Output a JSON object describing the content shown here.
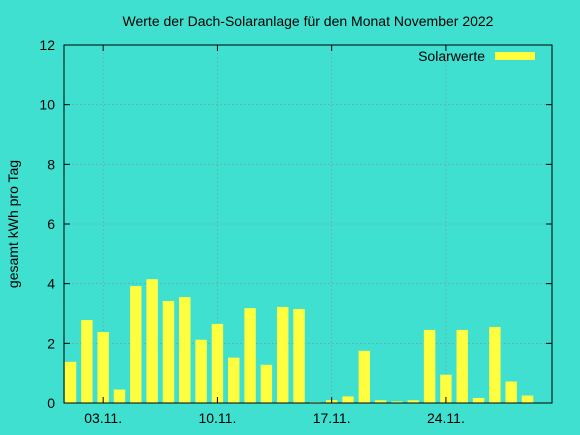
{
  "chart_data": {
    "type": "bar",
    "title": "Werte der Dach-Solaranlage für den Monat November 2022",
    "ylabel": "gesamt kWh pro Tag",
    "xlabel": "",
    "ylim": [
      0,
      12
    ],
    "yticks": [
      "0",
      "2",
      "4",
      "6",
      "8",
      "10",
      "12"
    ],
    "x_ticks": [
      {
        "day": 3,
        "label": "03.11."
      },
      {
        "day": 10,
        "label": "10.11."
      },
      {
        "day": 17,
        "label": "17.11."
      },
      {
        "day": 24,
        "label": "24.11."
      }
    ],
    "x_range_days": [
      0.6,
      30.5
    ],
    "grid": true,
    "legend_position": "top-right",
    "bar_color": "#ffff40",
    "background_color": "#40e0d0",
    "series": [
      {
        "name": "Solarwerte",
        "days": [
          1,
          2,
          3,
          4,
          5,
          6,
          7,
          8,
          9,
          10,
          11,
          12,
          13,
          14,
          15,
          16,
          17,
          18,
          19,
          20,
          21,
          22,
          23,
          24,
          25,
          26,
          27,
          28,
          29,
          30
        ],
        "values": [
          1.38,
          2.78,
          2.38,
          0.45,
          3.92,
          4.15,
          3.42,
          3.55,
          2.12,
          2.65,
          1.52,
          3.18,
          1.28,
          3.22,
          3.15,
          0.03,
          0.1,
          0.22,
          1.75,
          0.09,
          0.05,
          0.09,
          2.45,
          0.95,
          2.45,
          0.17,
          2.55,
          0.72,
          0.25,
          0.0
        ]
      }
    ]
  }
}
